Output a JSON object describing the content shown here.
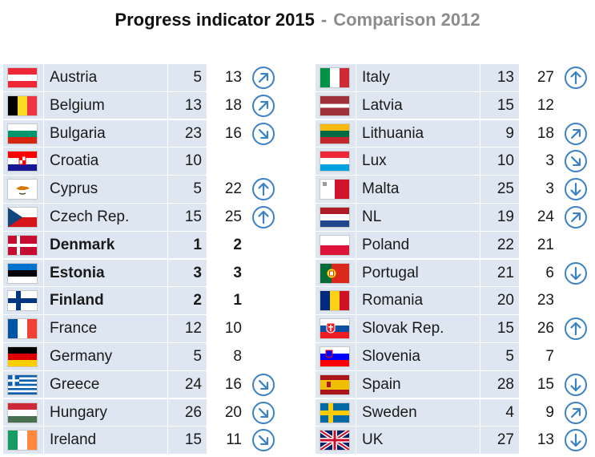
{
  "title": {
    "main": "Progress indicator 2015",
    "separator": "-",
    "compare": "Comparison 2012"
  },
  "colors": {
    "row_bg": "#dde6f1",
    "arrow": "#3b82c4"
  },
  "left": [
    {
      "country": "Austria",
      "v2015": "5",
      "v2012": "13",
      "arrow": "up-right",
      "bold": false,
      "flag": "austria"
    },
    {
      "country": "Belgium",
      "v2015": "13",
      "v2012": "18",
      "arrow": "up-right",
      "bold": false,
      "flag": "belgium"
    },
    {
      "country": "Bulgaria",
      "v2015": "23",
      "v2012": "16",
      "arrow": "down-right",
      "bold": false,
      "flag": "bulgaria"
    },
    {
      "country": "Croatia",
      "v2015": "10",
      "v2012": "",
      "arrow": "none",
      "bold": false,
      "flag": "croatia"
    },
    {
      "country": "Cyprus",
      "v2015": "5",
      "v2012": "22",
      "arrow": "up",
      "bold": false,
      "flag": "cyprus"
    },
    {
      "country": "Czech Rep.",
      "v2015": "15",
      "v2012": "25",
      "arrow": "up",
      "bold": false,
      "flag": "czech"
    },
    {
      "country": "Denmark",
      "v2015": "1",
      "v2012": "2",
      "arrow": "none",
      "bold": true,
      "flag": "denmark"
    },
    {
      "country": "Estonia",
      "v2015": "3",
      "v2012": "3",
      "arrow": "none",
      "bold": true,
      "flag": "estonia"
    },
    {
      "country": "Finland",
      "v2015": "2",
      "v2012": "1",
      "arrow": "none",
      "bold": true,
      "flag": "finland"
    },
    {
      "country": "France",
      "v2015": "12",
      "v2012": "10",
      "arrow": "none",
      "bold": false,
      "flag": "france"
    },
    {
      "country": "Germany",
      "v2015": "5",
      "v2012": "8",
      "arrow": "none",
      "bold": false,
      "flag": "germany"
    },
    {
      "country": "Greece",
      "v2015": "24",
      "v2012": "16",
      "arrow": "down-right",
      "bold": false,
      "flag": "greece"
    },
    {
      "country": "Hungary",
      "v2015": "26",
      "v2012": "20",
      "arrow": "down-right",
      "bold": false,
      "flag": "hungary"
    },
    {
      "country": "Ireland",
      "v2015": "15",
      "v2012": "11",
      "arrow": "down-right",
      "bold": false,
      "flag": "ireland"
    }
  ],
  "right": [
    {
      "country": "Italy",
      "v2015": "13",
      "v2012": "27",
      "arrow": "up",
      "bold": false,
      "flag": "italy"
    },
    {
      "country": "Latvia",
      "v2015": "15",
      "v2012": "12",
      "arrow": "none",
      "bold": false,
      "flag": "latvia"
    },
    {
      "country": "Lithuania",
      "v2015": "9",
      "v2012": "18",
      "arrow": "up-right",
      "bold": false,
      "flag": "lithuania"
    },
    {
      "country": "Lux",
      "v2015": "10",
      "v2012": "3",
      "arrow": "down-right",
      "bold": false,
      "flag": "luxembourg"
    },
    {
      "country": "Malta",
      "v2015": "25",
      "v2012": "3",
      "arrow": "down",
      "bold": false,
      "flag": "malta"
    },
    {
      "country": "NL",
      "v2015": "19",
      "v2012": "24",
      "arrow": "up-right",
      "bold": false,
      "flag": "netherlands"
    },
    {
      "country": "Poland",
      "v2015": "22",
      "v2012": "21",
      "arrow": "none",
      "bold": false,
      "flag": "poland"
    },
    {
      "country": "Portugal",
      "v2015": "21",
      "v2012": "6",
      "arrow": "down",
      "bold": false,
      "flag": "portugal"
    },
    {
      "country": "Romania",
      "v2015": "20",
      "v2012": "23",
      "arrow": "none",
      "bold": false,
      "flag": "romania"
    },
    {
      "country": "Slovak Rep.",
      "v2015": "15",
      "v2012": "26",
      "arrow": "up",
      "bold": false,
      "flag": "slovakia"
    },
    {
      "country": "Slovenia",
      "v2015": "5",
      "v2012": "7",
      "arrow": "none",
      "bold": false,
      "flag": "slovenia"
    },
    {
      "country": "Spain",
      "v2015": "28",
      "v2012": "15",
      "arrow": "down",
      "bold": false,
      "flag": "spain"
    },
    {
      "country": "Sweden",
      "v2015": "4",
      "v2012": "9",
      "arrow": "up-right",
      "bold": false,
      "flag": "sweden"
    },
    {
      "country": "UK",
      "v2015": "27",
      "v2012": "13",
      "arrow": "down",
      "bold": false,
      "flag": "uk"
    }
  ]
}
